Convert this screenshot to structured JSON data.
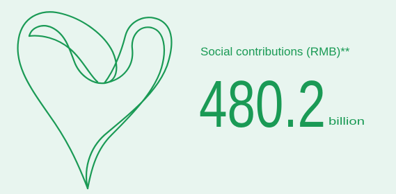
{
  "stat": {
    "label": "Social contributions (RMB)**",
    "value": "480.2",
    "unit": "billion"
  }
}
